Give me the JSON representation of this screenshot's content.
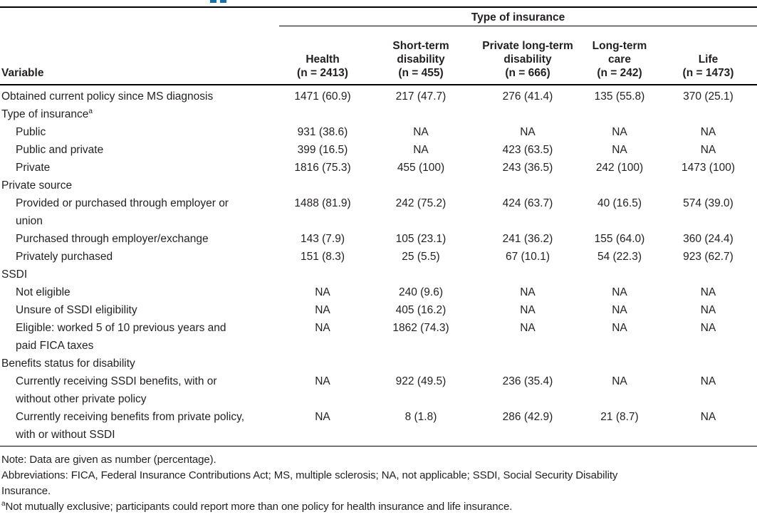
{
  "accent_color": "#1a6fa8",
  "table": {
    "span_header": "Type of insurance",
    "variable_header": "Variable",
    "columns": [
      {
        "lines": [
          "Health",
          "(n = 2413)"
        ]
      },
      {
        "lines": [
          "Short-term",
          "disability",
          "(n = 455)"
        ]
      },
      {
        "lines": [
          "Private long-term",
          "disability",
          "(n = 666)"
        ]
      },
      {
        "lines": [
          "Long-term",
          "care",
          "(n = 242)"
        ]
      },
      {
        "lines": [
          "Life",
          "(n = 1473)"
        ]
      }
    ],
    "rows": [
      {
        "label": "Obtained current policy since MS diagnosis",
        "indent": 0,
        "values": [
          "1471 (60.9)",
          "217 (47.7)",
          "276 (41.4)",
          "135 (55.8)",
          "370 (25.1)"
        ]
      },
      {
        "label": "Type of insurance",
        "sup": "a",
        "indent": 0,
        "values": [
          "",
          "",
          "",
          "",
          ""
        ]
      },
      {
        "label": "Public",
        "indent": 1,
        "values": [
          "931 (38.6)",
          "NA",
          "NA",
          "NA",
          "NA"
        ]
      },
      {
        "label": "Public and private",
        "indent": 1,
        "values": [
          "399 (16.5)",
          "NA",
          "423 (63.5)",
          "NA",
          "NA"
        ]
      },
      {
        "label": "Private",
        "indent": 1,
        "values": [
          "1816 (75.3)",
          "455 (100)",
          "243 (36.5)",
          "242 (100)",
          "1473 (100)"
        ]
      },
      {
        "label": "Private source",
        "indent": 0,
        "values": [
          "",
          "",
          "",
          "",
          ""
        ]
      },
      {
        "label": "Provided or purchased through employer or\nunion",
        "indent": 1,
        "values": [
          "1488 (81.9)",
          "242 (75.2)",
          "424 (63.7)",
          "40 (16.5)",
          "574 (39.0)"
        ]
      },
      {
        "label": "Purchased through employer/exchange",
        "indent": 1,
        "values": [
          "143 (7.9)",
          "105 (23.1)",
          "241 (36.2)",
          "155 (64.0)",
          "360 (24.4)"
        ]
      },
      {
        "label": "Privately purchased",
        "indent": 1,
        "values": [
          "151 (8.3)",
          "25 (5.5)",
          "67 (10.1)",
          "54 (22.3)",
          "923 (62.7)"
        ]
      },
      {
        "label": "SSDI",
        "indent": 0,
        "values": [
          "",
          "",
          "",
          "",
          ""
        ]
      },
      {
        "label": "Not eligible",
        "indent": 1,
        "values": [
          "NA",
          "240 (9.6)",
          "NA",
          "NA",
          "NA"
        ]
      },
      {
        "label": "Unsure of SSDI eligibility",
        "indent": 1,
        "values": [
          "NA",
          "405 (16.2)",
          "NA",
          "NA",
          "NA"
        ]
      },
      {
        "label": "Eligible: worked 5 of 10 previous years and\npaid FICA taxes",
        "indent": 1,
        "values": [
          "NA",
          "1862 (74.3)",
          "NA",
          "NA",
          "NA"
        ]
      },
      {
        "label": "Benefits status for disability",
        "indent": 0,
        "values": [
          "",
          "",
          "",
          "",
          ""
        ]
      },
      {
        "label": "Currently receiving SSDI benefits, with or\nwithout other private policy",
        "indent": 1,
        "values": [
          "NA",
          "922 (49.5)",
          "236 (35.4)",
          "NA",
          "NA"
        ]
      },
      {
        "label": "Currently receiving benefits from private policy,\nwith or without SSDI",
        "indent": 1,
        "values": [
          "NA",
          "8 (1.8)",
          "286 (42.9)",
          "21 (8.7)",
          "NA"
        ]
      }
    ]
  },
  "footnotes": {
    "note": "Note: Data are given as number (percentage).",
    "abbreviations": "Abbreviations: FICA, Federal Insurance Contributions Act; MS, multiple sclerosis; NA, not applicable; SSDI, Social Security Disability\nInsurance.",
    "footnote_a_sup": "a",
    "footnote_a": "Not mutually exclusive; participants could report more than one policy for health insurance and life insurance."
  }
}
